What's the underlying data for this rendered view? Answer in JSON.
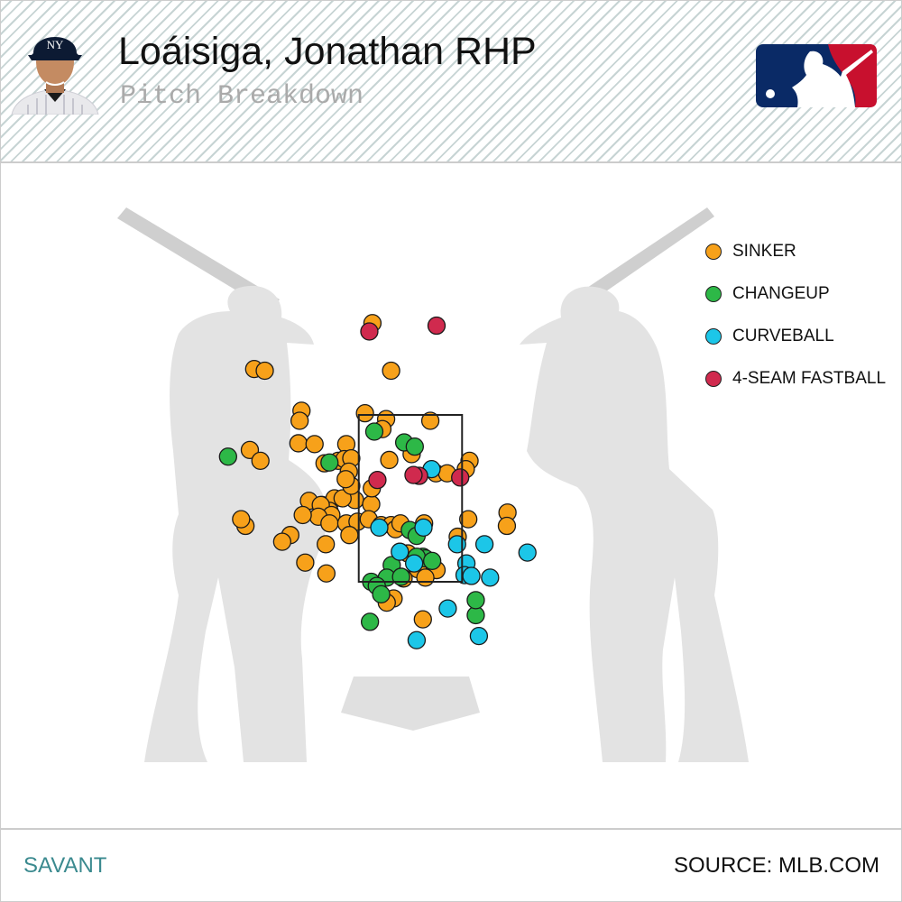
{
  "header": {
    "title": "Loáisiga, Jonathan RHP",
    "subtitle": "Pitch Breakdown",
    "team_cap_letters": "NY"
  },
  "footer": {
    "left": "SAVANT",
    "right": "SOURCE: MLB.COM"
  },
  "colors": {
    "sinker": "#f7a11a",
    "changeup": "#2db847",
    "curveball": "#1cc6e8",
    "fastball": "#d02a4e",
    "logo_blue": "#0a2a66",
    "logo_red": "#c8102e"
  },
  "legend": [
    {
      "key": "sinker",
      "label": "SINKER",
      "icon": "circle"
    },
    {
      "key": "changeup",
      "label": "CHANGEUP",
      "icon": "circle"
    },
    {
      "key": "curveball",
      "label": "CURVEBALL",
      "icon": "circle"
    },
    {
      "key": "fastball",
      "label": "4-SEAM FASTBALL",
      "icon": "circle"
    }
  ],
  "chart_data": {
    "type": "scatter",
    "description_units": "plate_x (ft, catcher view), plate_z (ft)",
    "strike_zone": {
      "x": [
        -0.83,
        0.83
      ],
      "z": [
        1.5,
        3.5
      ]
    },
    "xlim": [
      -3.5,
      3.5
    ],
    "ylim": [
      -0.5,
      5.2
    ],
    "series": [
      {
        "name": "SINKER",
        "key": "sinker",
        "points": [
          [
            -0.61,
            4.6
          ],
          [
            -0.31,
            4.03
          ],
          [
            -2.51,
            4.05
          ],
          [
            -2.34,
            4.03
          ],
          [
            -1.75,
            3.55
          ],
          [
            -0.73,
            3.52
          ],
          [
            -0.39,
            3.45
          ],
          [
            -1.78,
            3.43
          ],
          [
            0.32,
            3.43
          ],
          [
            -0.45,
            3.33
          ],
          [
            -1.8,
            3.16
          ],
          [
            -1.54,
            3.15
          ],
          [
            -1.03,
            3.15
          ],
          [
            0.02,
            3.03
          ],
          [
            -2.58,
            3.08
          ],
          [
            -2.41,
            2.95
          ],
          [
            -1.16,
            2.95
          ],
          [
            -1.06,
            2.97
          ],
          [
            -0.95,
            2.98
          ],
          [
            0.95,
            2.95
          ],
          [
            -0.34,
            2.96
          ],
          [
            -1.38,
            2.92
          ],
          [
            -0.99,
            2.82
          ],
          [
            0.89,
            2.85
          ],
          [
            0.41,
            2.8
          ],
          [
            0.59,
            2.8
          ],
          [
            -1.42,
            2.42
          ],
          [
            -1.63,
            2.47
          ],
          [
            -0.89,
            2.48
          ],
          [
            -1.22,
            2.5
          ],
          [
            -1.09,
            2.5
          ],
          [
            -0.63,
            2.43
          ],
          [
            -1.3,
            2.35
          ],
          [
            -0.95,
            2.65
          ],
          [
            -1.04,
            2.73
          ],
          [
            -1.44,
            2.42
          ],
          [
            -1.27,
            2.3
          ],
          [
            -1.48,
            2.28
          ],
          [
            -1.3,
            2.2
          ],
          [
            -1.73,
            2.3
          ],
          [
            -2.65,
            2.17
          ],
          [
            -1.93,
            2.06
          ],
          [
            -1.03,
            2.2
          ],
          [
            -0.85,
            2.22
          ],
          [
            -0.67,
            2.25
          ],
          [
            -0.47,
            2.18
          ],
          [
            -0.31,
            2.18
          ],
          [
            -0.24,
            2.13
          ],
          [
            -0.16,
            2.2
          ],
          [
            0.22,
            2.2
          ],
          [
            0.76,
            2.04
          ],
          [
            0.93,
            2.25
          ],
          [
            1.56,
            2.33
          ],
          [
            1.55,
            2.17
          ],
          [
            -2.06,
            1.98
          ],
          [
            -1.36,
            1.95
          ],
          [
            -0.98,
            2.06
          ],
          [
            -0.04,
            1.84
          ],
          [
            0.24,
            1.7
          ],
          [
            0.12,
            1.65
          ],
          [
            -1.69,
            1.73
          ],
          [
            -1.35,
            1.6
          ],
          [
            0.42,
            1.64
          ],
          [
            0.24,
            1.55
          ],
          [
            -0.27,
            1.3
          ],
          [
            -0.38,
            1.25
          ],
          [
            -0.11,
            1.54
          ],
          [
            -0.62,
            2.62
          ],
          [
            -2.72,
            2.25
          ],
          [
            0.2,
            1.05
          ]
        ]
      },
      {
        "name": "CHANGEUP",
        "key": "changeup",
        "points": [
          [
            -0.58,
            3.3
          ],
          [
            -0.1,
            3.17
          ],
          [
            0.07,
            3.12
          ],
          [
            -2.93,
            3.0
          ],
          [
            -1.3,
            2.93
          ],
          [
            -0.01,
            2.12
          ],
          [
            0.1,
            2.05
          ],
          [
            0.2,
            1.8
          ],
          [
            0.24,
            1.78
          ],
          [
            -0.3,
            1.7
          ],
          [
            -0.38,
            1.55
          ],
          [
            -0.63,
            1.5
          ],
          [
            -0.54,
            1.45
          ],
          [
            -0.15,
            1.56
          ],
          [
            0.1,
            1.8
          ],
          [
            -0.47,
            1.35
          ],
          [
            1.05,
            1.1
          ],
          [
            1.05,
            1.28
          ],
          [
            -0.65,
            1.02
          ],
          [
            0.35,
            1.75
          ]
        ]
      },
      {
        "name": "CURVEBALL",
        "key": "curveball",
        "points": [
          [
            0.34,
            2.85
          ],
          [
            -0.5,
            2.15
          ],
          [
            0.21,
            2.15
          ],
          [
            0.75,
            1.95
          ],
          [
            0.9,
            1.72
          ],
          [
            0.87,
            1.58
          ],
          [
            0.98,
            1.57
          ],
          [
            1.28,
            1.55
          ],
          [
            1.19,
            1.95
          ],
          [
            1.88,
            1.85
          ],
          [
            0.6,
            1.18
          ],
          [
            1.1,
            0.85
          ],
          [
            0.1,
            0.8
          ],
          [
            -0.17,
            1.86
          ],
          [
            0.06,
            1.72
          ]
        ]
      },
      {
        "name": "4-SEAM FASTBALL",
        "key": "fastball",
        "points": [
          [
            -0.66,
            4.5
          ],
          [
            0.42,
            4.57
          ],
          [
            -0.53,
            2.72
          ],
          [
            0.14,
            2.77
          ],
          [
            0.8,
            2.75
          ],
          [
            0.05,
            2.78
          ]
        ]
      }
    ]
  }
}
